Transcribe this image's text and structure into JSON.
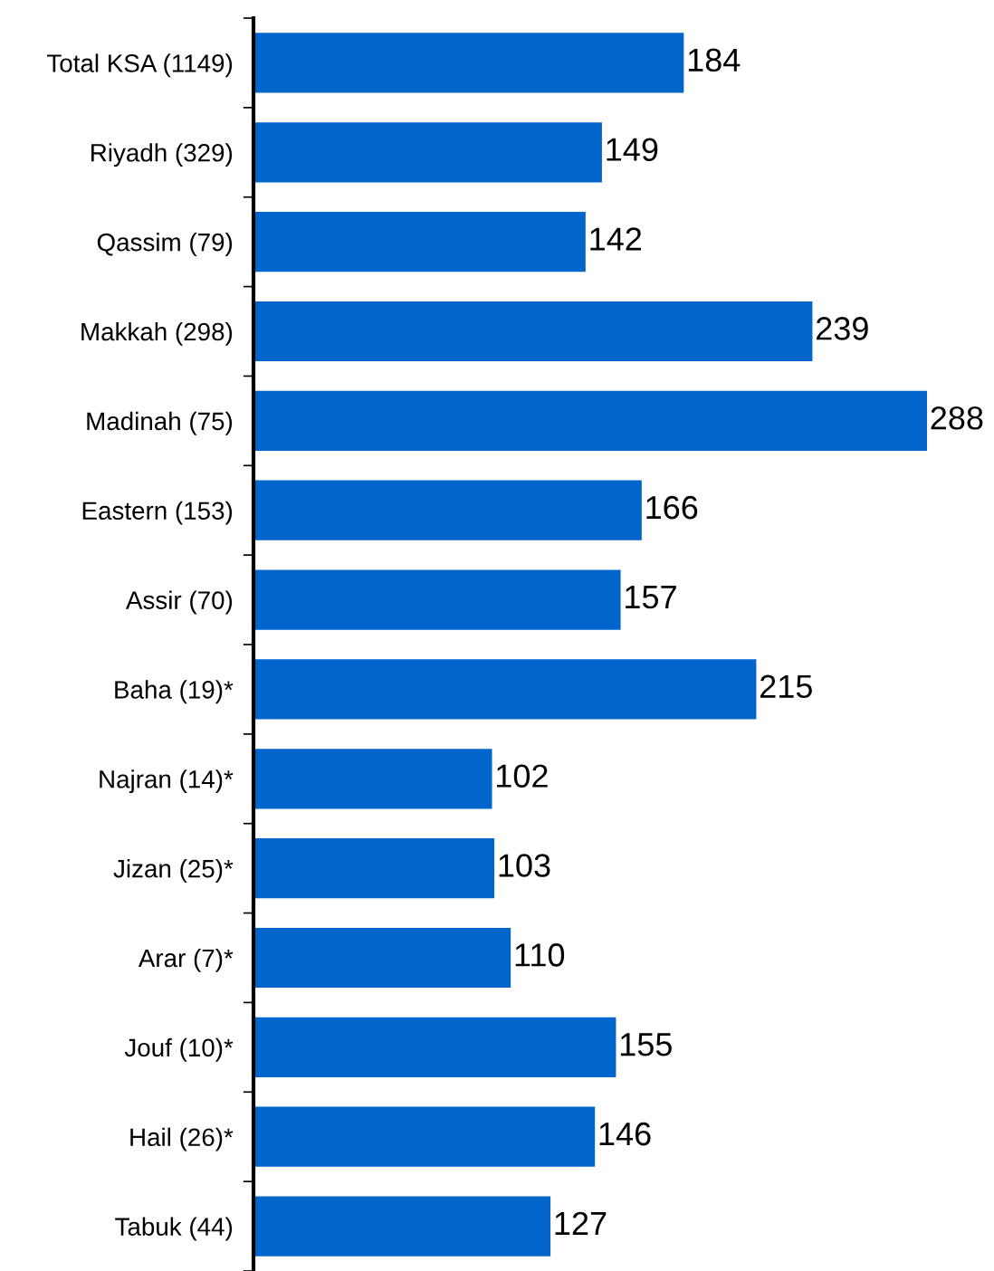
{
  "chart_data": {
    "type": "bar",
    "orientation": "horizontal",
    "data_labels": true,
    "categories": [
      "Total KSA (1149)",
      "Riyadh (329)",
      "Qassim (79)",
      "Makkah (298)",
      "Madinah (75)",
      "Eastern (153)",
      "Assir (70)",
      "Baha (19)*",
      "Najran (14)*",
      "Jizan (25)*",
      "Arar (7)*",
      "Jouf (10)*",
      "Hail (26)*",
      "Tabuk (44)"
    ],
    "values": [
      184,
      149,
      142,
      239,
      288,
      166,
      157,
      215,
      102,
      103,
      110,
      155,
      146,
      127
    ],
    "color": "#0066cc",
    "grid": false,
    "legend": false
  }
}
